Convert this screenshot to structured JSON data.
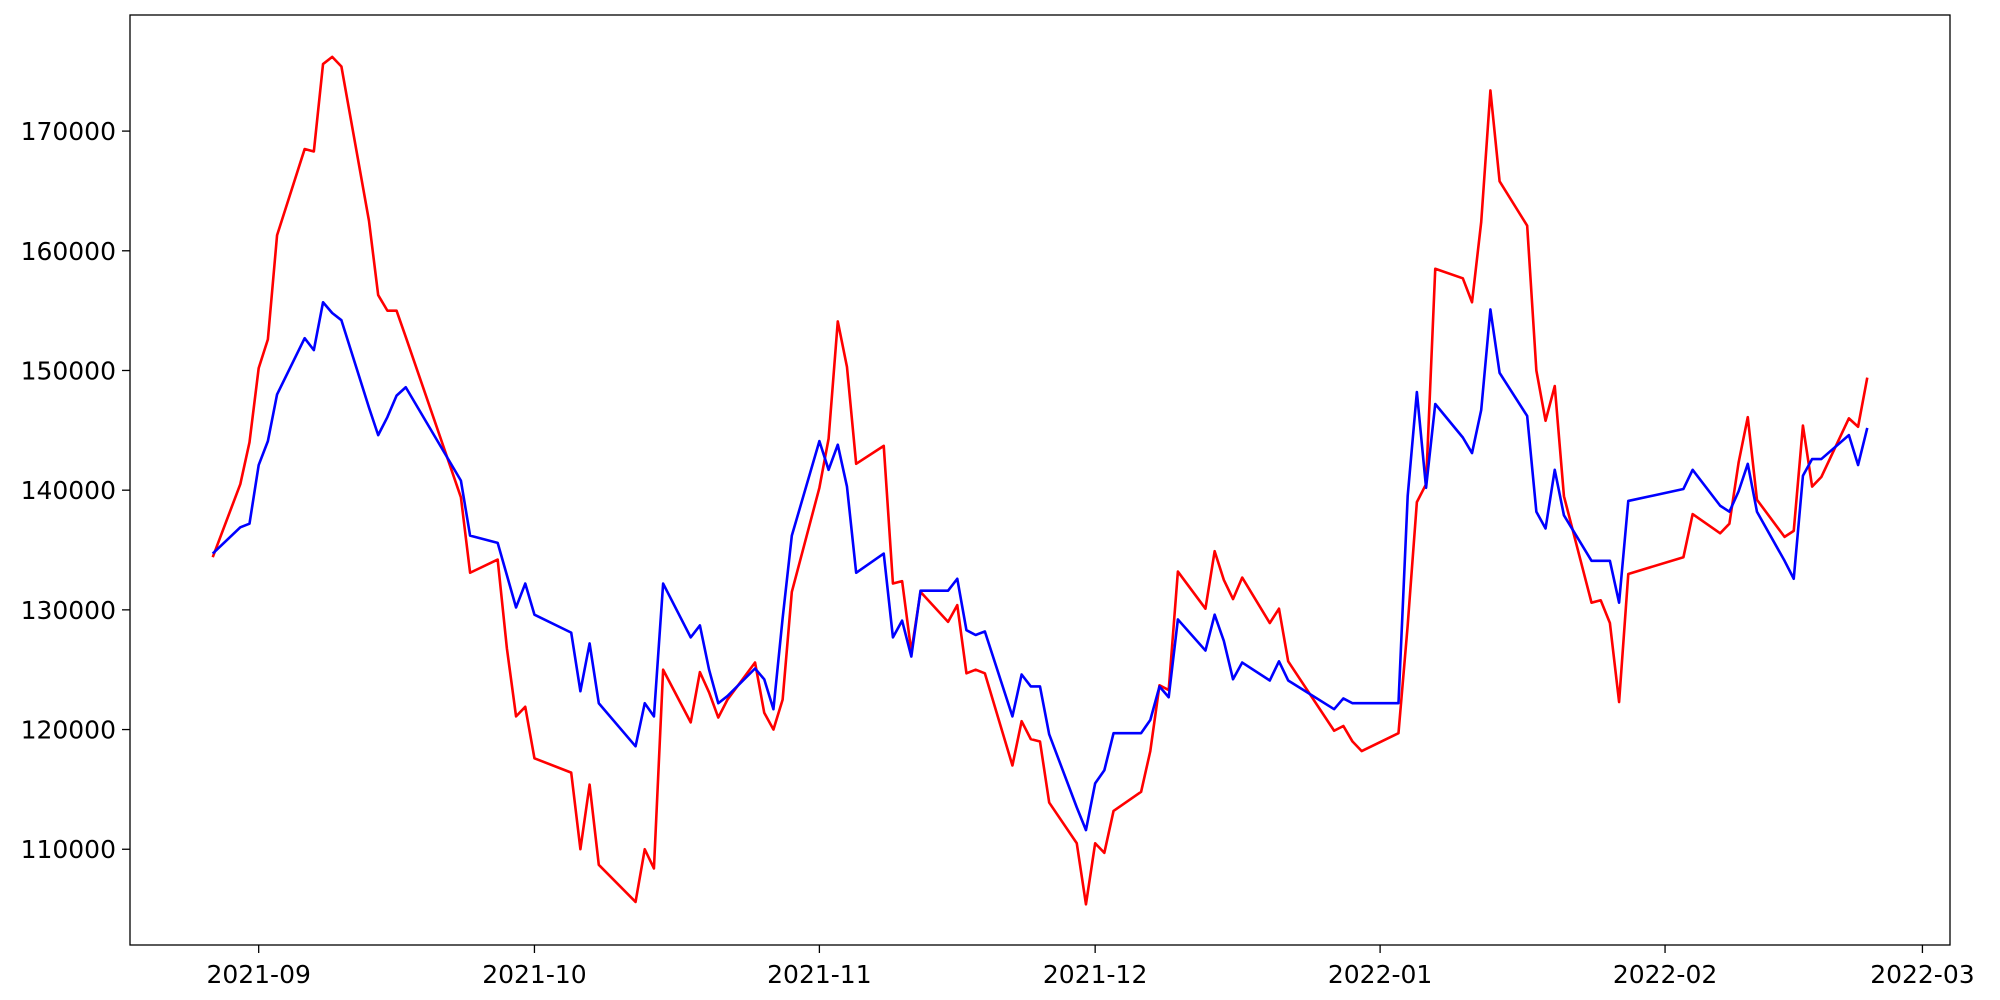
{
  "chart_data": {
    "type": "line",
    "x": [
      "2021-08-27",
      "2021-08-30",
      "2021-08-31",
      "2021-09-01",
      "2021-09-02",
      "2021-09-03",
      "2021-09-06",
      "2021-09-07",
      "2021-09-08",
      "2021-09-09",
      "2021-09-10",
      "2021-09-13",
      "2021-09-14",
      "2021-09-15",
      "2021-09-16",
      "2021-09-17",
      "2021-09-23",
      "2021-09-24",
      "2021-09-27",
      "2021-09-28",
      "2021-09-29",
      "2021-09-30",
      "2021-10-01",
      "2021-10-05",
      "2021-10-06",
      "2021-10-07",
      "2021-10-08",
      "2021-10-12",
      "2021-10-13",
      "2021-10-14",
      "2021-10-15",
      "2021-10-18",
      "2021-10-19",
      "2021-10-20",
      "2021-10-21",
      "2021-10-22",
      "2021-10-25",
      "2021-10-26",
      "2021-10-27",
      "2021-10-28",
      "2021-10-29",
      "2021-11-01",
      "2021-11-02",
      "2021-11-03",
      "2021-11-04",
      "2021-11-05",
      "2021-11-08",
      "2021-11-09",
      "2021-11-10",
      "2021-11-11",
      "2021-11-12",
      "2021-11-15",
      "2021-11-16",
      "2021-11-17",
      "2021-11-18",
      "2021-11-19",
      "2021-11-22",
      "2021-11-23",
      "2021-11-24",
      "2021-11-25",
      "2021-11-26",
      "2021-11-29",
      "2021-11-30",
      "2021-12-01",
      "2021-12-02",
      "2021-12-03",
      "2021-12-06",
      "2021-12-07",
      "2021-12-08",
      "2021-12-09",
      "2021-12-10",
      "2021-12-13",
      "2021-12-14",
      "2021-12-15",
      "2021-12-16",
      "2021-12-17",
      "2021-12-20",
      "2021-12-21",
      "2021-12-22",
      "2021-12-27",
      "2021-12-28",
      "2021-12-29",
      "2021-12-30",
      "2022-01-03",
      "2022-01-04",
      "2022-01-05",
      "2022-01-06",
      "2022-01-07",
      "2022-01-10",
      "2022-01-11",
      "2022-01-12",
      "2022-01-13",
      "2022-01-14",
      "2022-01-17",
      "2022-01-18",
      "2022-01-19",
      "2022-01-20",
      "2022-01-21",
      "2022-01-24",
      "2022-01-25",
      "2022-01-26",
      "2022-01-27",
      "2022-01-28",
      "2022-02-03",
      "2022-02-04",
      "2022-02-07",
      "2022-02-08",
      "2022-02-09",
      "2022-02-10",
      "2022-02-11",
      "2022-02-14",
      "2022-02-15",
      "2022-02-16",
      "2022-02-17",
      "2022-02-18",
      "2022-02-21",
      "2022-02-22",
      "2022-02-23"
    ],
    "series": [
      {
        "color": "#ff0000",
        "values": [
          134400,
          140500,
          144000,
          150200,
          152600,
          161300,
          168500,
          168300,
          175600,
          176200,
          175400,
          162500,
          156300,
          155000,
          155000,
          152800,
          139400,
          133100,
          134200,
          126800,
          121100,
          121900,
          117600,
          116400,
          110000,
          115400,
          108700,
          105600,
          110000,
          108400,
          125000,
          120600,
          124800,
          123100,
          121000,
          122500,
          125600,
          121400,
          120000,
          122500,
          131500,
          140200,
          144300,
          154100,
          150300,
          142200,
          143700,
          132200,
          132400,
          126500,
          131500,
          129000,
          130400,
          124700,
          125000,
          124700,
          117000,
          120700,
          119200,
          119000,
          113900,
          110500,
          105400,
          110500,
          109700,
          113200,
          114800,
          118200,
          123700,
          123300,
          133200,
          130100,
          134900,
          132500,
          130900,
          132700,
          128900,
          130100,
          125700,
          119900,
          120300,
          119000,
          118200,
          119700,
          128700,
          139000,
          140500,
          158500,
          157700,
          155700,
          162400,
          173400,
          165800,
          162100,
          150000,
          145800,
          148700,
          139500,
          130600,
          130800,
          128900,
          122300,
          133000,
          134400,
          138000,
          136400,
          137200,
          142300,
          146100,
          139200,
          136100,
          136600,
          145400,
          140300,
          141100,
          146000,
          145300,
          149400
        ]
      },
      {
        "color": "#0000ff",
        "values": [
          134700,
          136900,
          137200,
          142100,
          144100,
          148000,
          152700,
          151700,
          155700,
          154800,
          154200,
          146900,
          144600,
          146100,
          147900,
          148600,
          140800,
          136200,
          135600,
          132900,
          130200,
          132200,
          129600,
          128100,
          123200,
          127200,
          122200,
          118600,
          122200,
          121100,
          132200,
          127700,
          128700,
          125000,
          122200,
          122800,
          125100,
          124200,
          121700,
          129300,
          136200,
          144100,
          141700,
          143800,
          140300,
          133100,
          134700,
          127700,
          129100,
          126100,
          131600,
          131600,
          132600,
          128300,
          127900,
          128200,
          121100,
          124600,
          123600,
          123600,
          119600,
          113500,
          111600,
          115500,
          116600,
          119700,
          119700,
          120800,
          123600,
          122700,
          129200,
          126600,
          129600,
          127400,
          124200,
          125600,
          124100,
          125700,
          124100,
          121700,
          122600,
          122200,
          122200,
          122200,
          139500,
          148200,
          140200,
          147200,
          144400,
          143100,
          146700,
          155100,
          149800,
          146200,
          138200,
          136800,
          141700,
          137900,
          134100,
          134100,
          134100,
          130600,
          139100,
          140100,
          141700,
          138700,
          138200,
          139900,
          142200,
          138200,
          134100,
          132600,
          141200,
          142600,
          142600,
          144600,
          142100,
          145200
        ]
      }
    ],
    "xlim": [
      "2021-08-18",
      "2022-03-04"
    ],
    "xticks": [
      {
        "value": "2021-09-01",
        "label": "2021-09"
      },
      {
        "value": "2021-10-01",
        "label": "2021-10"
      },
      {
        "value": "2021-11-01",
        "label": "2021-11"
      },
      {
        "value": "2021-12-01",
        "label": "2021-12"
      },
      {
        "value": "2022-01-01",
        "label": "2022-01"
      },
      {
        "value": "2022-02-01",
        "label": "2022-02"
      },
      {
        "value": "2022-03-01",
        "label": "2022-03"
      }
    ],
    "ylim": [
      102000,
      179700
    ],
    "yticks": [
      110000,
      120000,
      130000,
      140000,
      150000,
      160000,
      170000
    ],
    "grid": false
  }
}
